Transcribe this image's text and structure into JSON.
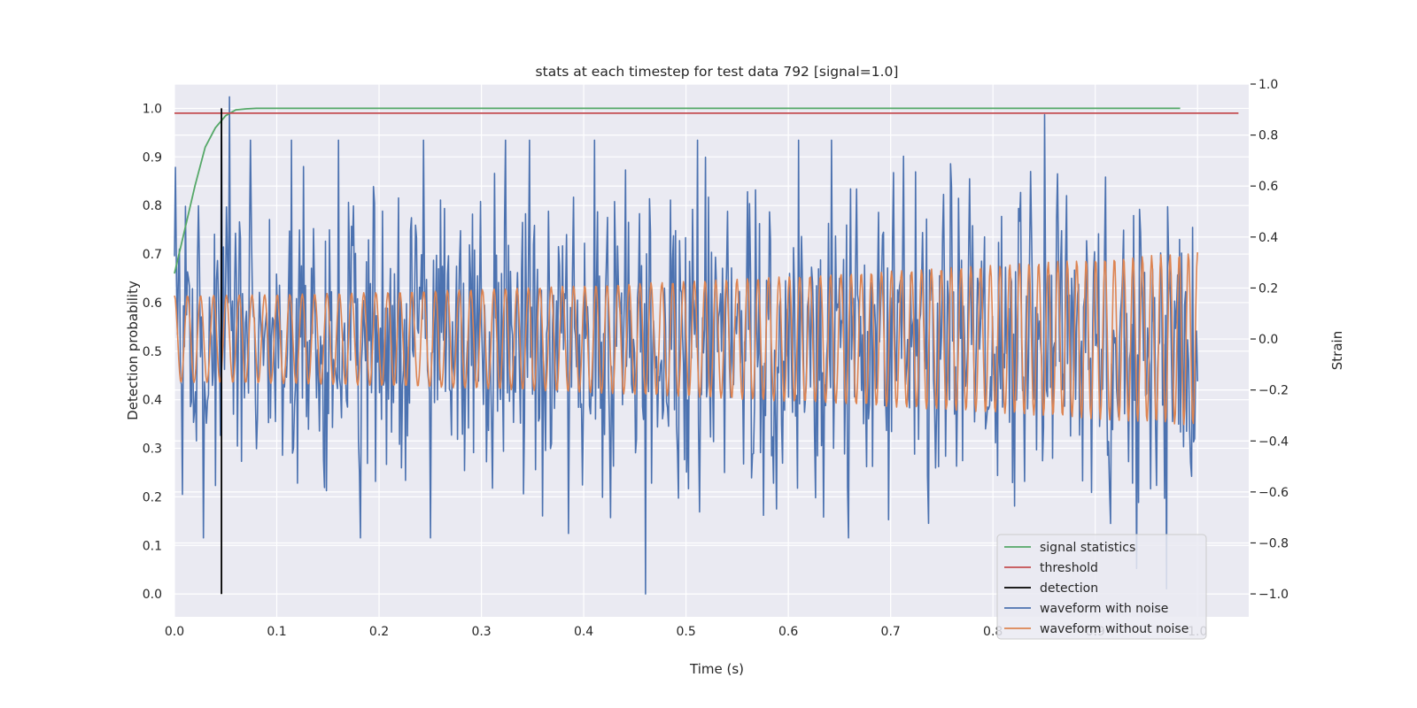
{
  "chart_data": {
    "type": "line",
    "title": "stats at each timestep for test data 792 [signal=1.0]",
    "xlabel": "Time (s)",
    "ylabel_left": "Detection probability",
    "ylabel_right": "Strain",
    "xlim": [
      0.0,
      1.05
    ],
    "ylim_left": [
      -0.047,
      1.05
    ],
    "ylim_right": [
      -1.09,
      1.0
    ],
    "x_ticks": [
      "0.0",
      "0.1",
      "0.2",
      "0.3",
      "0.4",
      "0.5",
      "0.6",
      "0.7",
      "0.8",
      "0.9",
      "1.0"
    ],
    "y_ticks_left": [
      "0.0",
      "0.1",
      "0.2",
      "0.3",
      "0.4",
      "0.5",
      "0.6",
      "0.7",
      "0.8",
      "0.9",
      "1.0"
    ],
    "y_ticks_right": [
      "−1.0",
      "−0.8",
      "−0.6",
      "−0.4",
      "−0.2",
      "0.0",
      "0.2",
      "0.4",
      "0.6",
      "0.8",
      "1.0"
    ],
    "grid": true,
    "legend_placement": "lower-right",
    "colors": {
      "signal_statistics": "#55a868",
      "threshold": "#c44e52",
      "detection": "#000000",
      "waveform_with_noise": "#4c72b0",
      "waveform_without_noise": "#dd8452",
      "plot_background": "#eaeaf2"
    },
    "series": [
      {
        "name": "signal statistics",
        "axis": "left",
        "x": [
          0.0,
          0.01,
          0.02,
          0.03,
          0.04,
          0.05,
          0.06,
          0.07,
          0.08,
          0.1,
          0.2,
          0.4,
          0.6,
          0.8,
          0.983
        ],
        "y": [
          0.66,
          0.75,
          0.84,
          0.92,
          0.96,
          0.985,
          0.997,
          0.999,
          1.0,
          1.0,
          1.0,
          1.0,
          1.0,
          1.0,
          1.0
        ]
      },
      {
        "name": "threshold",
        "axis": "left",
        "x": [
          0.0,
          1.04
        ],
        "y": [
          0.99,
          0.99
        ]
      },
      {
        "name": "detection",
        "axis": "left",
        "x": [
          0.046,
          0.046
        ],
        "y": [
          0.0,
          1.0
        ]
      },
      {
        "name": "waveform with noise",
        "axis": "right",
        "x_range": [
          0.0,
          1.0
        ],
        "n_points": 1024,
        "extremes": [
          {
            "x": 0.046,
            "y": 0.9
          },
          {
            "x": 0.054,
            "y": 0.95
          },
          {
            "x": 0.46,
            "y": -1.0
          },
          {
            "x": 0.85,
            "y": 0.88
          },
          {
            "x": 0.94,
            "y": -0.9
          },
          {
            "x": 0.97,
            "y": -0.98
          }
        ],
        "typical_amplitude": 0.45
      },
      {
        "name": "waveform without noise",
        "axis": "right",
        "x_range": [
          0.0,
          1.0
        ],
        "amplitude_start": 0.17,
        "amplitude_end": 0.34,
        "cycles": 95
      }
    ]
  },
  "legend": {
    "items": [
      {
        "label": "signal statistics",
        "color": "#55a868"
      },
      {
        "label": "threshold",
        "color": "#c44e52"
      },
      {
        "label": "detection",
        "color": "#000000"
      },
      {
        "label": "waveform with noise",
        "color": "#4c72b0"
      },
      {
        "label": "waveform without noise",
        "color": "#dd8452"
      }
    ]
  }
}
